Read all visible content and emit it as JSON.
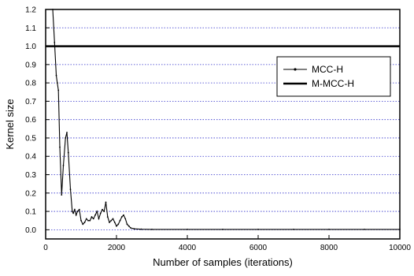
{
  "chart_data": {
    "type": "line",
    "title": "",
    "xlabel": "Number of samples (iterations)",
    "ylabel": "Kernel size",
    "xlim": [
      0,
      10000
    ],
    "ylim": [
      -0.05,
      1.2
    ],
    "xticks": [
      0,
      2000,
      4000,
      6000,
      8000,
      10000
    ],
    "yticks": [
      0.0,
      0.1,
      0.2,
      0.3,
      0.4,
      0.5,
      0.6,
      0.7,
      0.8,
      0.9,
      1.0,
      1.1,
      1.2
    ],
    "ytick_labels": [
      "0.0",
      "0.1",
      "0.2",
      "0.3",
      "0.4",
      "0.5",
      "0.6",
      "0.7",
      "0.8",
      "0.9",
      "1.0",
      "1.1",
      "1.2"
    ],
    "grid": "horizontal dotted blue",
    "legend_position": "right",
    "series": [
      {
        "name": "MCC-H",
        "color": "#000000",
        "style": "thin line with dots",
        "x": [
          200,
          250,
          300,
          330,
          360,
          400,
          450,
          500,
          560,
          600,
          640,
          700,
          750,
          780,
          820,
          860,
          900,
          950,
          1000,
          1050,
          1100,
          1150,
          1200,
          1250,
          1300,
          1350,
          1400,
          1450,
          1500,
          1550,
          1600,
          1650,
          1700,
          1750,
          1800,
          1850,
          1900,
          1950,
          2000,
          2050,
          2100,
          2150,
          2200,
          2250,
          2300,
          2350,
          2400,
          2500,
          2700,
          3000,
          4000,
          5000,
          6000,
          7000,
          8000,
          9000,
          10000
        ],
        "y": [
          1.2,
          1.02,
          0.84,
          0.8,
          0.76,
          0.45,
          0.19,
          0.35,
          0.5,
          0.53,
          0.42,
          0.22,
          0.1,
          0.09,
          0.11,
          0.08,
          0.1,
          0.11,
          0.05,
          0.03,
          0.04,
          0.06,
          0.05,
          0.05,
          0.07,
          0.06,
          0.08,
          0.1,
          0.06,
          0.09,
          0.11,
          0.1,
          0.15,
          0.07,
          0.04,
          0.05,
          0.06,
          0.04,
          0.02,
          0.03,
          0.05,
          0.07,
          0.08,
          0.06,
          0.03,
          0.02,
          0.01,
          0.005,
          0.003,
          0.002,
          0.002,
          0.002,
          0.002,
          0.002,
          0.002,
          0.002,
          0.002
        ]
      },
      {
        "name": "M-MCC-H",
        "color": "#000000",
        "style": "thick line",
        "x": [
          0,
          10000
        ],
        "y": [
          1.0,
          1.0
        ]
      }
    ]
  }
}
